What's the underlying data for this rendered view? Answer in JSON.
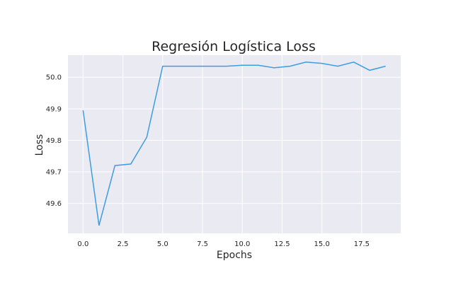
{
  "chart_data": {
    "type": "line",
    "title": "Regresión Logística Loss",
    "xlabel": "Epochs",
    "ylabel": "Loss",
    "xlim": [
      -0.95,
      19.95
    ],
    "ylim": [
      49.505,
      50.07
    ],
    "grid": true,
    "background": "#eaeaf2",
    "grid_color": "#ffffff",
    "line_color": "#3d9de0",
    "x_ticks": [
      0.0,
      2.5,
      5.0,
      7.5,
      10.0,
      12.5,
      15.0,
      17.5
    ],
    "x_tick_labels": [
      "0.0",
      "2.5",
      "5.0",
      "7.5",
      "10.0",
      "12.5",
      "15.0",
      "17.5"
    ],
    "y_ticks": [
      49.6,
      49.7,
      49.8,
      49.9,
      50.0
    ],
    "y_tick_labels": [
      "49.6",
      "49.7",
      "49.8",
      "49.9",
      "50.0"
    ],
    "x": [
      0,
      1,
      2,
      3,
      4,
      5,
      6,
      7,
      8,
      9,
      10,
      11,
      12,
      13,
      14,
      15,
      16,
      17,
      18,
      19
    ],
    "values": [
      49.895,
      49.53,
      49.72,
      49.725,
      49.81,
      50.035,
      50.035,
      50.035,
      50.035,
      50.035,
      50.038,
      50.038,
      50.03,
      50.035,
      50.048,
      50.044,
      50.035,
      50.048,
      50.022,
      50.035
    ]
  }
}
